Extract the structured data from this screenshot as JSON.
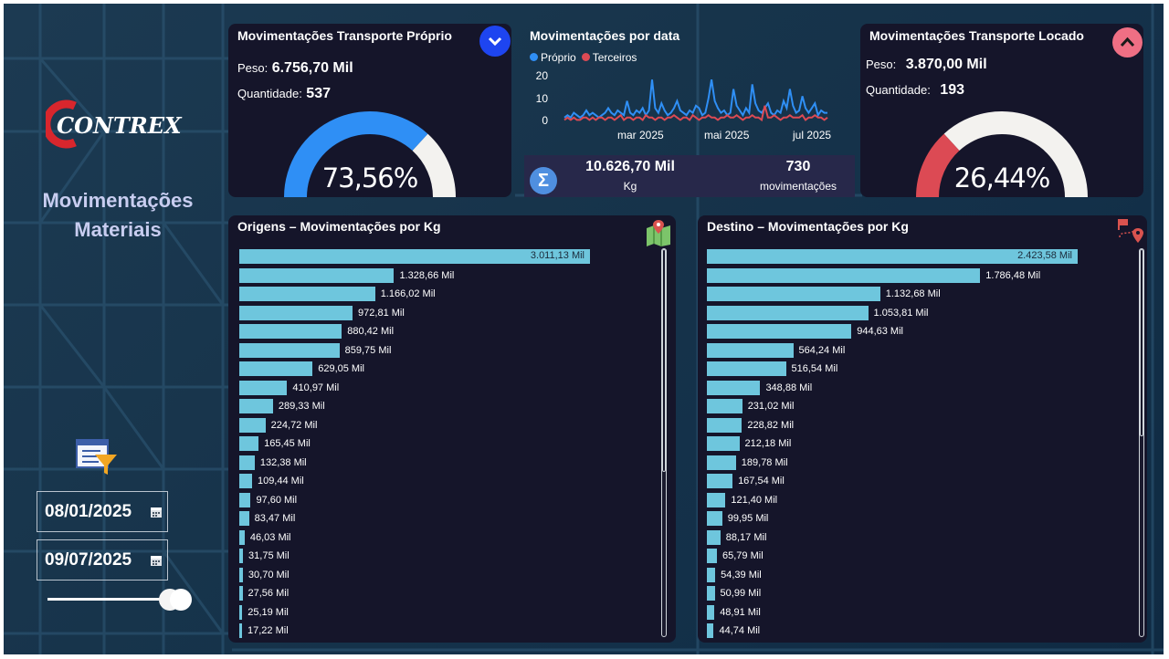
{
  "sidebar": {
    "logo_text": "CONTREX",
    "title_line1": "Movimentações",
    "title_line2": "Materiais",
    "date_start": "08/01/2025",
    "date_end": "09/07/2025"
  },
  "card_proprio": {
    "title": "Movimentações Transporte Próprio",
    "peso_label": "Peso:",
    "peso_value": "6.756,70 Mil",
    "qtd_label": "Quantidade:",
    "qtd_value": "537",
    "gauge_pct": 73.56,
    "gauge_label": "73,56%",
    "gauge_color": "#2f8ff5"
  },
  "card_locado": {
    "title": "Movimentações Transporte Locado",
    "peso_label": "Peso:",
    "peso_value": "3.870,00 Mil",
    "qtd_label": "Quantidade:",
    "qtd_value": "193",
    "gauge_pct": 26.44,
    "gauge_label": "26,44%",
    "gauge_color": "#dc4a54"
  },
  "card_data": {
    "title": "Movimentações por data",
    "legend": [
      {
        "name": "Próprio",
        "color": "#2f8ff5"
      },
      {
        "name": "Terceiros",
        "color": "#dc4a54"
      }
    ],
    "y_ticks": [
      "20",
      "10",
      "0"
    ],
    "x_ticks": [
      "mar 2025",
      "mai 2025",
      "jul 2025"
    ]
  },
  "summary": {
    "total_kg": "10.626,70 Mil",
    "total_kg_unit": "Kg",
    "total_mov": "730",
    "total_mov_unit": "movimentações"
  },
  "origens": {
    "title": "Origens – Movimentações por Kg",
    "values": [
      3011.13,
      1328.66,
      1166.02,
      972.81,
      880.42,
      859.75,
      629.05,
      410.97,
      289.33,
      224.72,
      165.45,
      132.38,
      109.44,
      97.6,
      83.47,
      46.03,
      31.75,
      30.7,
      27.56,
      25.19,
      17.22
    ],
    "labels": [
      "3.011,13 Mil",
      "1.328,66 Mil",
      "1.166,02 Mil",
      "972,81 Mil",
      "880,42 Mil",
      "859,75 Mil",
      "629,05 Mil",
      "410,97 Mil",
      "289,33 Mil",
      "224,72 Mil",
      "165,45 Mil",
      "132,38 Mil",
      "109,44 Mil",
      "97,60 Mil",
      "83,47 Mil",
      "46,03 Mil",
      "31,75 Mil",
      "30,70 Mil",
      "27,56 Mil",
      "25,19 Mil",
      "17,22 Mil"
    ]
  },
  "destino": {
    "title": "Destino – Movimentações por Kg",
    "values": [
      2423.58,
      1786.48,
      1132.68,
      1053.81,
      944.63,
      564.24,
      516.54,
      348.88,
      231.02,
      228.82,
      212.18,
      189.78,
      167.54,
      121.4,
      99.95,
      88.17,
      65.79,
      54.39,
      50.99,
      48.91,
      44.74
    ],
    "labels": [
      "2.423,58 Mil",
      "1.786,48 Mil",
      "1.132,68 Mil",
      "1.053,81 Mil",
      "944,63 Mil",
      "564,24 Mil",
      "516,54 Mil",
      "348,88 Mil",
      "231,02 Mil",
      "228,82 Mil",
      "212,18 Mil",
      "189,78 Mil",
      "167,54 Mil",
      "121,40 Mil",
      "99,95 Mil",
      "88,17 Mil",
      "65,79 Mil",
      "54,39 Mil",
      "50,99 Mil",
      "48,91 Mil",
      "44,74 Mil"
    ]
  },
  "chart_data": [
    {
      "type": "line",
      "title": "Movimentações por data",
      "x_ticks": [
        "mar 2025",
        "mai 2025",
        "jul 2025"
      ],
      "ylim": [
        0,
        20
      ],
      "legend": "top-left",
      "series": [
        {
          "name": "Próprio",
          "color": "#2f8ff5",
          "values": [
            2,
            3,
            2,
            4,
            3,
            2,
            3,
            5,
            3,
            4,
            3,
            2,
            3,
            4,
            6,
            4,
            3,
            5,
            4,
            3,
            9,
            4,
            3,
            5,
            4,
            6,
            3,
            5,
            18,
            6,
            4,
            8,
            5,
            3,
            4,
            6,
            9,
            5,
            4,
            3,
            5,
            4,
            7,
            6,
            3,
            4,
            10,
            18,
            9,
            6,
            4,
            5,
            3,
            4,
            14,
            7,
            5,
            3,
            6,
            4,
            16,
            8,
            5,
            4,
            6,
            8,
            4,
            3,
            5,
            4,
            9,
            6,
            14,
            7,
            4,
            5,
            11,
            6,
            4,
            6,
            8,
            3,
            5,
            4,
            4
          ]
        },
        {
          "name": "Terceiros",
          "color": "#dc4a54",
          "values": [
            1,
            2,
            1,
            2,
            1,
            1,
            2,
            2,
            1,
            2,
            1,
            2,
            2,
            1,
            2,
            2,
            1,
            2,
            3,
            1,
            2,
            2,
            1,
            2,
            2,
            1,
            3,
            2,
            2,
            1,
            2,
            2,
            1,
            2,
            2,
            3,
            2,
            1,
            2,
            2,
            1,
            3,
            2,
            1,
            2,
            2,
            3,
            2,
            2,
            1,
            2,
            2,
            3,
            2,
            2,
            3,
            2,
            1,
            2,
            2,
            3,
            2,
            2,
            1,
            7,
            2,
            2,
            3,
            2,
            1,
            2,
            2,
            3,
            2,
            2,
            2,
            3,
            1,
            2,
            2,
            3,
            2,
            2,
            1,
            2
          ]
        }
      ]
    },
    {
      "type": "bar",
      "title": "Origens – Movimentações por Kg",
      "values": [
        3011.13,
        1328.66,
        1166.02,
        972.81,
        880.42,
        859.75,
        629.05,
        410.97,
        289.33,
        224.72,
        165.45,
        132.38,
        109.44,
        97.6,
        83.47,
        46.03,
        31.75,
        30.7,
        27.56,
        25.19,
        17.22
      ]
    },
    {
      "type": "bar",
      "title": "Destino – Movimentações por Kg",
      "values": [
        2423.58,
        1786.48,
        1132.68,
        1053.81,
        944.63,
        564.24,
        516.54,
        348.88,
        231.02,
        228.82,
        212.18,
        189.78,
        167.54,
        121.4,
        99.95,
        88.17,
        65.79,
        54.39,
        50.99,
        48.91,
        44.74
      ]
    }
  ]
}
